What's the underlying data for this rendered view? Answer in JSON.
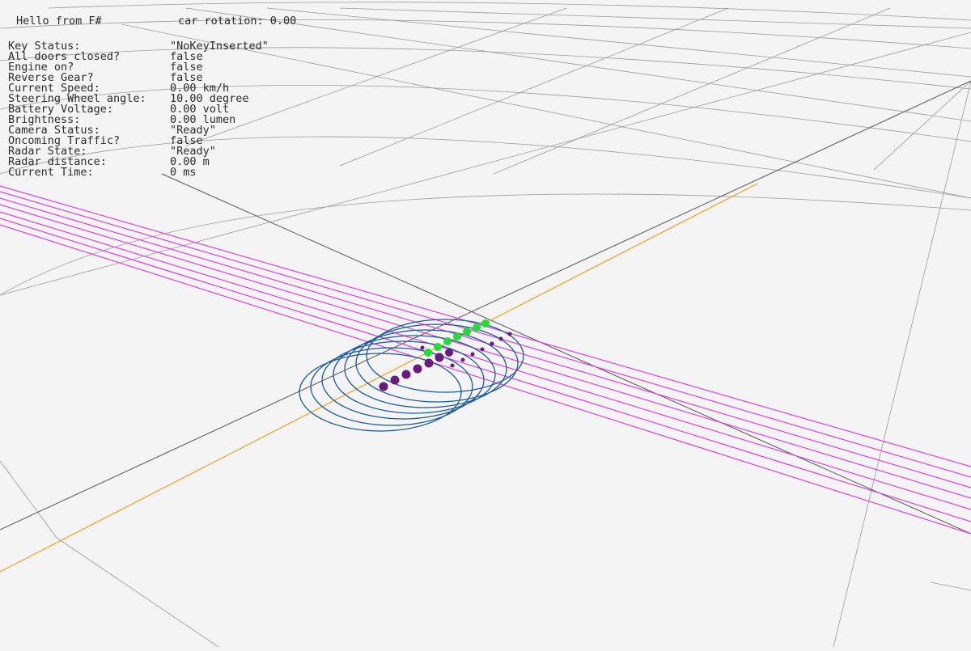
{
  "header": {
    "greeting": "Hello from F#",
    "car_rotation_label": "car rotation: 0.00"
  },
  "status": [
    {
      "label": "Key Status:",
      "value": "\"NoKeyInserted\""
    },
    {
      "label": "All doors closed?",
      "value": "false"
    },
    {
      "label": "Engine on?",
      "value": "false"
    },
    {
      "label": "Reverse Gear?",
      "value": "false"
    },
    {
      "label": "Current Speed:",
      "value": "0.00 km/h"
    },
    {
      "label": "Steering Wheel angle:",
      "value": "10.00 degree"
    },
    {
      "label": "Battery Voltage:",
      "value": "0.00 volt"
    },
    {
      "label": "Brightness:",
      "value": "0.00 lumen"
    },
    {
      "label": "Camera Status:",
      "value": "\"Ready\""
    },
    {
      "label": "Oncoming Traffic?",
      "value": "false"
    },
    {
      "label": "Radar State:",
      "value": "\"Ready\""
    },
    {
      "label": "Radar distance:",
      "value": "0.00 m"
    },
    {
      "label": "Current Time:",
      "value": "0 ms"
    }
  ],
  "scene": {
    "colors": {
      "background": "#f4f4f4",
      "grid": "#9a9a9a",
      "axis_dark": "#555555",
      "axis_orange": "#f0a020",
      "lane_lines": "#e040e0",
      "radar_rings": "#1a5a9a",
      "sensor_points_green": "#22dd33",
      "sensor_points_purple": "#6a1a7a"
    }
  }
}
